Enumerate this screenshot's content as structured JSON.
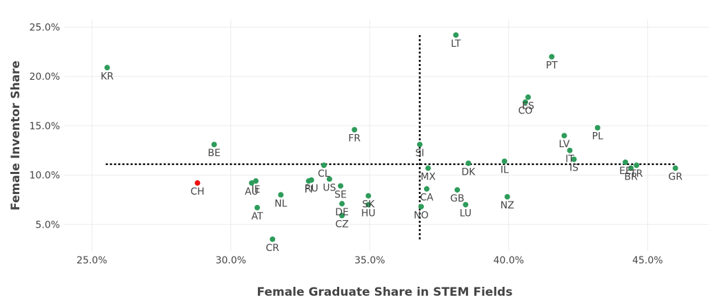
{
  "chart_data": {
    "type": "scatter",
    "xlabel": "Female Graduate Share in STEM Fields",
    "ylabel": "Female Inventor Share",
    "xlim": [
      0.24,
      0.472
    ],
    "ylim": [
      0.023,
      0.258
    ],
    "x_ticks": [
      0.25,
      0.3,
      0.35,
      0.4,
      0.45
    ],
    "x_tick_labels": [
      "25.0%",
      "30.0%",
      "35.0%",
      "40.0%",
      "45.0%"
    ],
    "y_ticks": [
      0.05,
      0.1,
      0.15,
      0.2,
      0.25
    ],
    "y_tick_labels": [
      "5.0%",
      "10.0%",
      "15.0%",
      "20.0%",
      "25.0%"
    ],
    "grid": true,
    "reference_lines": {
      "vertical_x": 0.368,
      "vertical_y_range": [
        0.034,
        0.242
      ],
      "horizontal_y": 0.111,
      "horizontal_x_range": [
        0.255,
        0.46
      ]
    },
    "colors": {
      "default": "#2e9c5a",
      "highlight": "#ee1111"
    },
    "points": [
      {
        "label": "KR",
        "x": 0.2555,
        "y": 0.209,
        "lp": "below"
      },
      {
        "label": "LT",
        "x": 0.381,
        "y": 0.242,
        "lp": "below"
      },
      {
        "label": "PT",
        "x": 0.4155,
        "y": 0.22,
        "lp": "below"
      },
      {
        "label": "ES",
        "x": 0.407,
        "y": 0.179,
        "lp": "below"
      },
      {
        "label": "CO",
        "x": 0.406,
        "y": 0.174,
        "lp": "below"
      },
      {
        "label": "BE",
        "x": 0.294,
        "y": 0.131,
        "lp": "below"
      },
      {
        "label": "FR",
        "x": 0.3445,
        "y": 0.146,
        "lp": "below"
      },
      {
        "label": "SI",
        "x": 0.368,
        "y": 0.131,
        "lp": "below"
      },
      {
        "label": "LV",
        "x": 0.42,
        "y": 0.14,
        "lp": "below"
      },
      {
        "label": "PL",
        "x": 0.432,
        "y": 0.148,
        "lp": "below"
      },
      {
        "label": "IT",
        "x": 0.422,
        "y": 0.125,
        "lp": "below"
      },
      {
        "label": "IS",
        "x": 0.4235,
        "y": 0.116,
        "lp": "below"
      },
      {
        "label": "IL",
        "x": 0.3985,
        "y": 0.114,
        "lp": "below"
      },
      {
        "label": "DK",
        "x": 0.3855,
        "y": 0.112,
        "lp": "below"
      },
      {
        "label": "EE",
        "x": 0.442,
        "y": 0.113,
        "lp": "below"
      },
      {
        "label": "BR",
        "x": 0.444,
        "y": 0.107,
        "lp": "below"
      },
      {
        "label": "TR",
        "x": 0.446,
        "y": 0.11,
        "lp": "below"
      },
      {
        "label": "GR",
        "x": 0.46,
        "y": 0.107,
        "lp": "below"
      },
      {
        "label": "CL",
        "x": 0.3335,
        "y": 0.11,
        "lp": "below"
      },
      {
        "label": "MX",
        "x": 0.371,
        "y": 0.107,
        "lp": "below"
      },
      {
        "label": "CH",
        "x": 0.288,
        "y": 0.092,
        "lp": "below",
        "highlight": true
      },
      {
        "label": "IE",
        "x": 0.309,
        "y": 0.094,
        "lp": "below"
      },
      {
        "label": "AU",
        "x": 0.3075,
        "y": 0.092,
        "lp": "below"
      },
      {
        "label": "NL",
        "x": 0.318,
        "y": 0.08,
        "lp": "below"
      },
      {
        "label": "FI",
        "x": 0.328,
        "y": 0.094,
        "lp": "below"
      },
      {
        "label": "RU",
        "x": 0.329,
        "y": 0.095,
        "lp": "below"
      },
      {
        "label": "US",
        "x": 0.3355,
        "y": 0.096,
        "lp": "below"
      },
      {
        "label": "SE",
        "x": 0.3395,
        "y": 0.089,
        "lp": "below"
      },
      {
        "label": "SK",
        "x": 0.3495,
        "y": 0.079,
        "lp": "below"
      },
      {
        "label": "HU",
        "x": 0.3495,
        "y": 0.07,
        "lp": "below"
      },
      {
        "label": "DE",
        "x": 0.34,
        "y": 0.071,
        "lp": "below"
      },
      {
        "label": "CZ",
        "x": 0.34,
        "y": 0.059,
        "lp": "below"
      },
      {
        "label": "AT",
        "x": 0.3095,
        "y": 0.067,
        "lp": "below"
      },
      {
        "label": "CR",
        "x": 0.315,
        "y": 0.035,
        "lp": "below"
      },
      {
        "label": "CA",
        "x": 0.3705,
        "y": 0.086,
        "lp": "below"
      },
      {
        "label": "NO",
        "x": 0.3685,
        "y": 0.068,
        "lp": "below"
      },
      {
        "label": "GB",
        "x": 0.3815,
        "y": 0.085,
        "lp": "below"
      },
      {
        "label": "LU",
        "x": 0.3845,
        "y": 0.07,
        "lp": "below"
      },
      {
        "label": "NZ",
        "x": 0.3995,
        "y": 0.078,
        "lp": "below"
      }
    ]
  }
}
